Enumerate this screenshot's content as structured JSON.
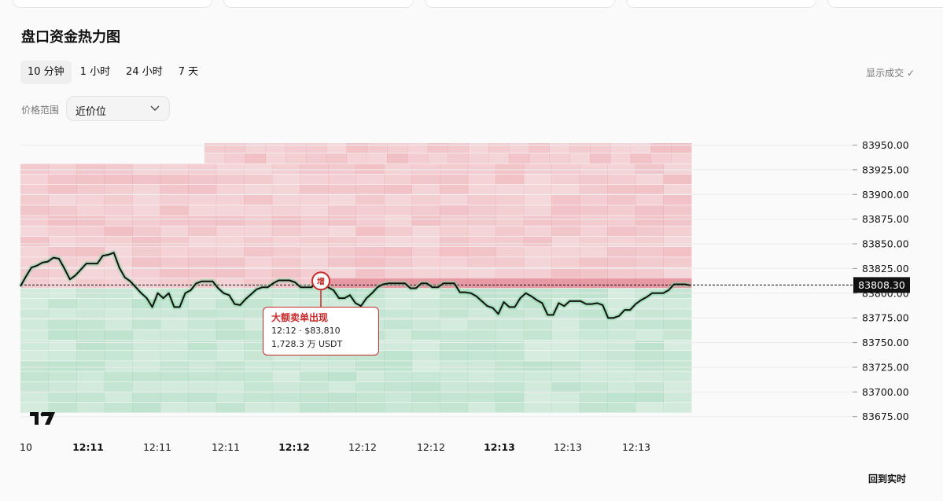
{
  "heading": "盘口资金热力图",
  "tabs": [
    "10 分钟",
    "1 小时",
    "24 小时",
    "7 天"
  ],
  "active_tab": 0,
  "show_trades": "显示成交 ✓",
  "price_range": {
    "label": "价格范围",
    "value": "近价位"
  },
  "back_to_live": "回到实时",
  "annotation": {
    "marker": "增",
    "title": "大额卖单出现",
    "line1": "12:12 · $83,810",
    "line2": "1,728.3 万 USDT"
  },
  "colors": {
    "ask": "#e88a93",
    "bid": "#8fd0ab",
    "line": "#111111",
    "accent": "#c62a2a"
  },
  "icons": {
    "logo": "tradingview-logo-icon",
    "dropdown": "chevron-down-icon"
  },
  "chart_data": {
    "type": "heatmap",
    "y_ticks": [
      "83950.00",
      "83925.00",
      "83900.00",
      "83875.00",
      "83850.00",
      "83825.00",
      "83800.00",
      "83775.00",
      "83750.00",
      "83725.00",
      "83700.00",
      "83675.00"
    ],
    "y_range": [
      83670,
      83952
    ],
    "x_tick_labels": [
      "10",
      "12:11",
      "12:11",
      "12:11",
      "12:12",
      "12:12",
      "12:12",
      "12:13",
      "12:13",
      "12:13"
    ],
    "x_tick_bold": [
      false,
      true,
      false,
      false,
      true,
      false,
      false,
      true,
      false,
      false
    ],
    "current_price": "83808.30",
    "current_price_value": 83808.3,
    "price_series": [
      83807,
      83817,
      83826,
      83828,
      83831,
      83832,
      83836,
      83835,
      83825,
      83814,
      83818,
      83824,
      83830,
      83830,
      83830,
      83838,
      83839,
      83841,
      83826,
      83816,
      83812,
      83806,
      83800,
      83795,
      83786,
      83800,
      83795,
      83800,
      83786,
      83786,
      83800,
      83803,
      83810,
      83812,
      83812,
      83812,
      83805,
      83800,
      83798,
      83789,
      83788,
      83794,
      83799,
      83804,
      83806,
      83806,
      83810,
      83813,
      83813,
      83813,
      83811,
      83806,
      83806,
      83806,
      83812,
      83812,
      83806,
      83803,
      83795,
      83795,
      83798,
      83790,
      83787,
      83795,
      83800,
      83806,
      83809,
      83810,
      83810,
      83810,
      83810,
      83805,
      83805,
      83810,
      83810,
      83806,
      83806,
      83810,
      83810,
      83810,
      83801,
      83801,
      83800,
      83797,
      83792,
      83787,
      83785,
      83779,
      83791,
      83786,
      83786,
      83795,
      83800,
      83797,
      83793,
      83790,
      83778,
      83778,
      83790,
      83787,
      83792,
      83792,
      83792,
      83789,
      83789,
      83790,
      83788,
      83775,
      83775,
      83777,
      83783,
      83783,
      83789,
      83793,
      83796,
      83800,
      83800,
      83800,
      83803,
      83809,
      83809,
      83809,
      83808
    ]
  }
}
